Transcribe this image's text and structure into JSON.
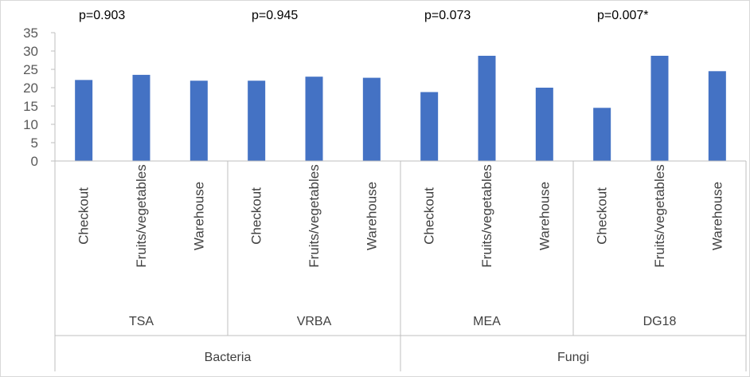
{
  "chart_data": {
    "type": "bar",
    "categories": [
      "Checkout",
      "Fruits/vegetables",
      "Warehouse",
      "Checkout",
      "Fruits/vegetables",
      "Warehouse",
      "Checkout",
      "Fruits/vegetables",
      "Warehouse",
      "Checkout",
      "Fruits/vegetables",
      "Warehouse"
    ],
    "groups": [
      "TSA",
      "VRBA",
      "MEA",
      "DG18"
    ],
    "supergroups": [
      "Bacteria",
      "Fungi"
    ],
    "values": [
      22.1,
      23.5,
      21.9,
      21.9,
      23.0,
      22.7,
      18.8,
      28.7,
      20.0,
      14.5,
      28.7,
      24.5
    ],
    "annotations": [
      "p=0.903",
      "p=0.945",
      "p=0.073",
      "p=0.007*"
    ],
    "yticks": [
      0,
      5,
      10,
      15,
      20,
      25,
      30,
      35
    ],
    "ylim": [
      0,
      35
    ],
    "bar_color": "#4472c4",
    "grid": false,
    "legend": false
  }
}
